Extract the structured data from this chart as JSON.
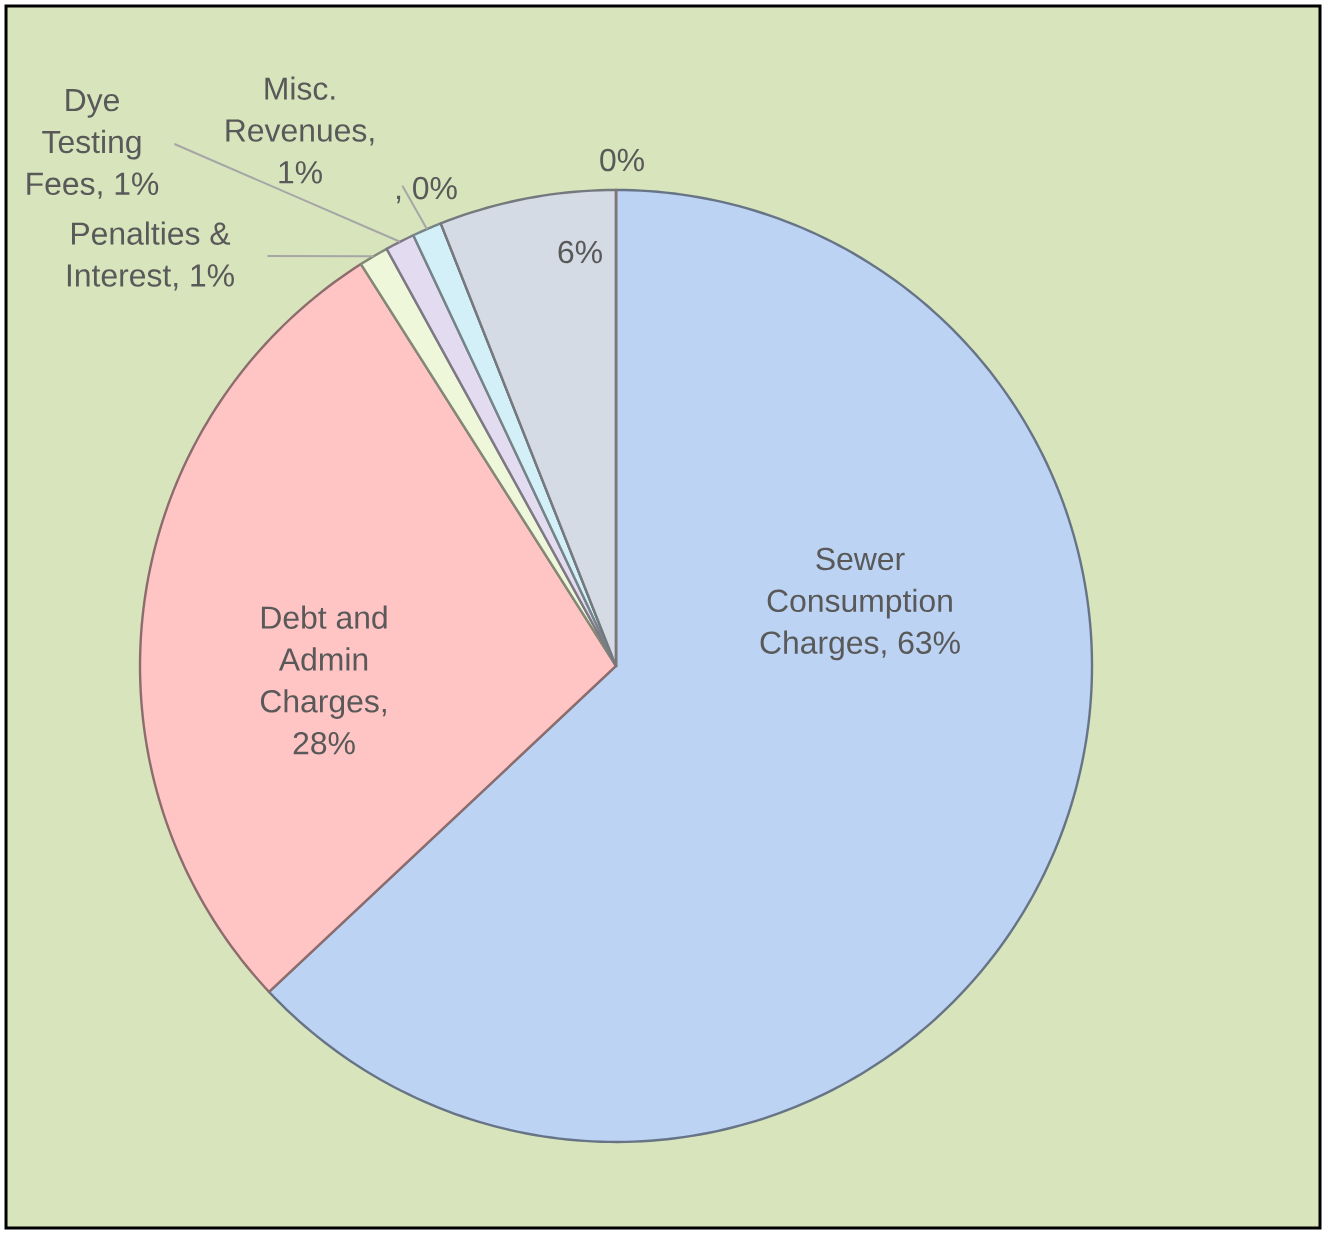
{
  "chart_data": {
    "type": "pie",
    "categories": [
      "Sewer Consumption Charges",
      "Debt and Admin Charges",
      "Penalties & Interest",
      "Dye Testing Fees",
      "Misc. Revenues",
      null,
      null,
      null
    ],
    "values": [
      63,
      28,
      1,
      1,
      1,
      0,
      6,
      0
    ],
    "colors": [
      "#bcd3f3",
      "#ffc4c4",
      "#eef7d9",
      "#e3dbf0",
      "#d3f0f8",
      "#c9e6ee",
      "#d5dbe4",
      "#e9d2d2"
    ],
    "value_labels": [
      ", 63%",
      ", 28%",
      ", 1%",
      ", 1%",
      ", 1%",
      ", 0%",
      "6%",
      "0%"
    ]
  }
}
